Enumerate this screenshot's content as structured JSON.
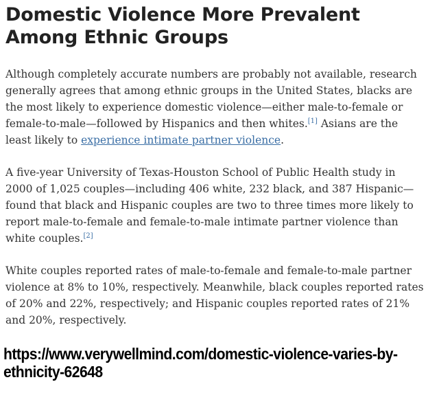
{
  "article": {
    "title_line1": "Domestic Violence More Prevalent",
    "title_line2": "Among Ethnic Groups",
    "paragraph1": {
      "text_before_ref": "Although completely accurate numbers are probably not available, research generally agrees that among ethnic groups in the United States, blacks are the most likely to experience domestic violence—either male-to-female or female-to-male—followed by Hispanics and then whites.",
      "ref": "[1]",
      "text_after_ref": " Asians are the least likely to ",
      "link_text": "experience intimate partner violence",
      "text_end": "."
    },
    "paragraph2": {
      "text": "A five-year University of Texas-Houston School of Public Health study in 2000 of 1,025 couples—including 406 white, 232 black, and 387 Hispanic—found that black and Hispanic couples are two to three times more likely to report male-to-female and female-to-male intimate partner violence than white couples.",
      "ref": "[2]"
    },
    "paragraph3": {
      "text": "White couples reported rates of male-to-female and female-to-male partner violence at 8% to 10%, respectively. Meanwhile, black couples reported rates of 20% and 22%, respectively; and Hispanic couples reported rates of 21% and 20%, respectively."
    }
  },
  "source_caption": {
    "line1": "https://www.verywellmind.com/domestic-violence-varies-by-",
    "line2": "ethnicity-62648"
  },
  "colors": {
    "link": "#3a6ea5",
    "body_text": "#333333",
    "heading": "#222222"
  }
}
